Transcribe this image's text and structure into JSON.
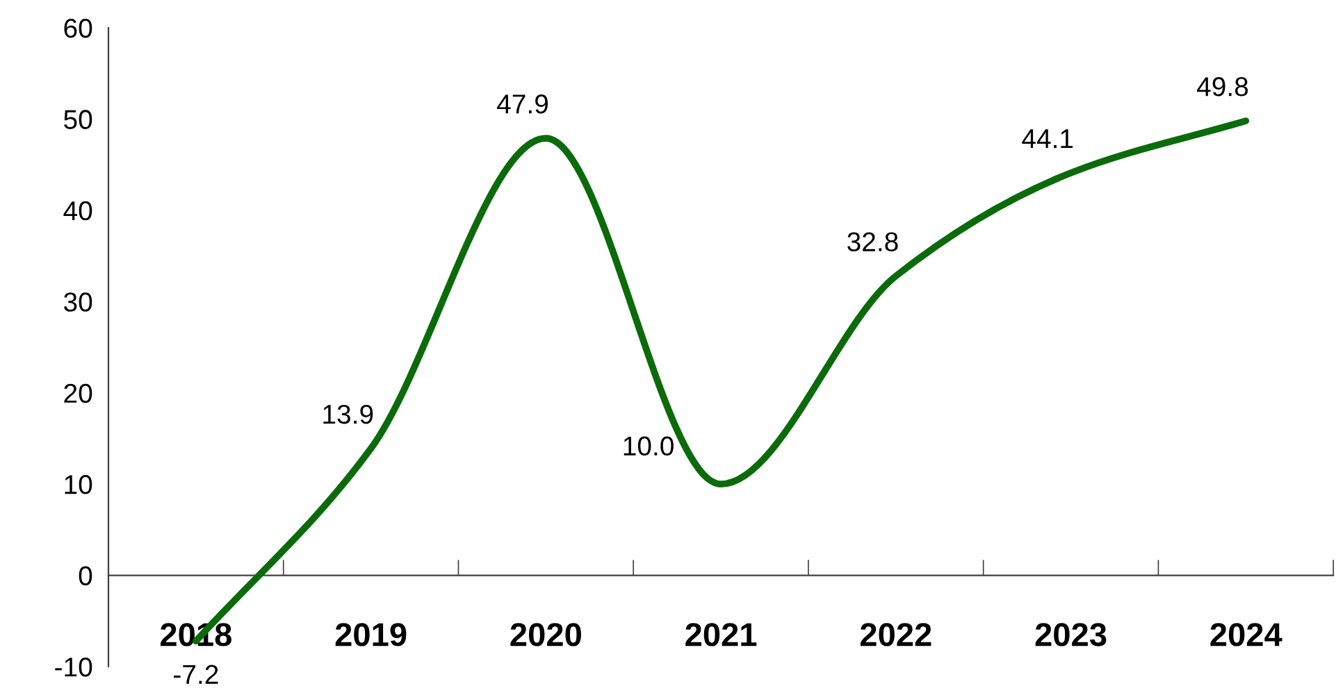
{
  "chart_data": {
    "type": "line",
    "categories": [
      "2018",
      "2019",
      "2020",
      "2021",
      "2022",
      "2023",
      "2024"
    ],
    "series": [
      {
        "color": "#0b6b0b",
        "values": [
          -7.2,
          13.9,
          47.9,
          10.0,
          32.8,
          44.1,
          49.8
        ]
      }
    ],
    "value_labels": [
      "-7.2",
      "13.9",
      "47.9",
      "10.0",
      "32.8",
      "44.1",
      "49.8"
    ],
    "ylim": [
      -10,
      60
    ],
    "yticks": [
      -10,
      0,
      10,
      20,
      30,
      40,
      50,
      60
    ],
    "grid": false,
    "marker": "none",
    "line_style": "solid"
  }
}
